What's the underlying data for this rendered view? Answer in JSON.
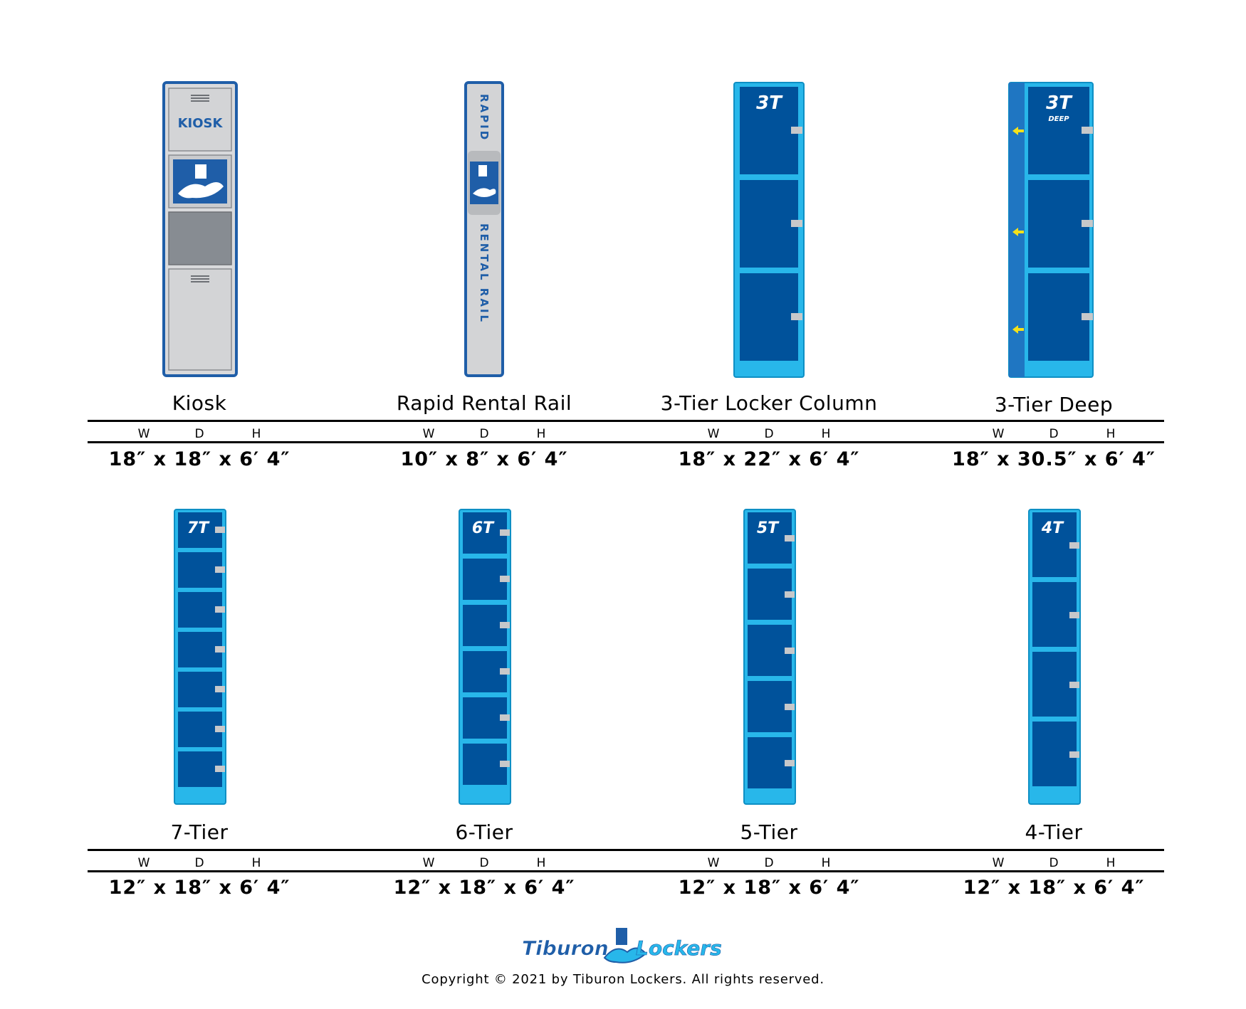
{
  "colors": {
    "locker_frame": "#28b7ea",
    "locker_door": "#00529b",
    "latch": "#c7c8ca",
    "kiosk_panel": "#cfd1d4",
    "kiosk_frame": "#1f5ea8",
    "arrow": "#f4e11a"
  },
  "labels": {
    "w": "W",
    "d": "D",
    "h": "H"
  },
  "products": [
    {
      "name": "Kiosk",
      "dims": "18″ x 18″ x 6′ 4″",
      "badge": "KIOSK"
    },
    {
      "name": "Rapid Rental Rail",
      "dims": "10″ x 8″ x 6′ 4″",
      "badge_top": "RAPID",
      "badge_bottom": "RENTAL RAIL"
    },
    {
      "name": "3-Tier Locker Column",
      "dims": "18″ x 22″ x 6′ 4″",
      "badge": "3T"
    },
    {
      "name": "3-Tier Deep",
      "dims": "18″ x 30.5″ x 6′ 4″",
      "badge": "3T",
      "badge_sub": "DEEP"
    },
    {
      "name": "7-Tier",
      "dims": "12″ x 18″ x 6′ 4″",
      "badge": "7T"
    },
    {
      "name": "6-Tier",
      "dims": "12″ x 18″ x 6′ 4″",
      "badge": "6T"
    },
    {
      "name": "5-Tier",
      "dims": "12″ x 18″ x 6′ 4″",
      "badge": "5T"
    },
    {
      "name": "4-Tier",
      "dims": "12″ x 18″ x 6′ 4″",
      "badge": "4T"
    }
  ],
  "footer": {
    "brand_left": "Tiburon",
    "brand_right": "Lockers",
    "copyright": "Copyright © 2021 by Tiburon Lockers. All rights reserved."
  }
}
